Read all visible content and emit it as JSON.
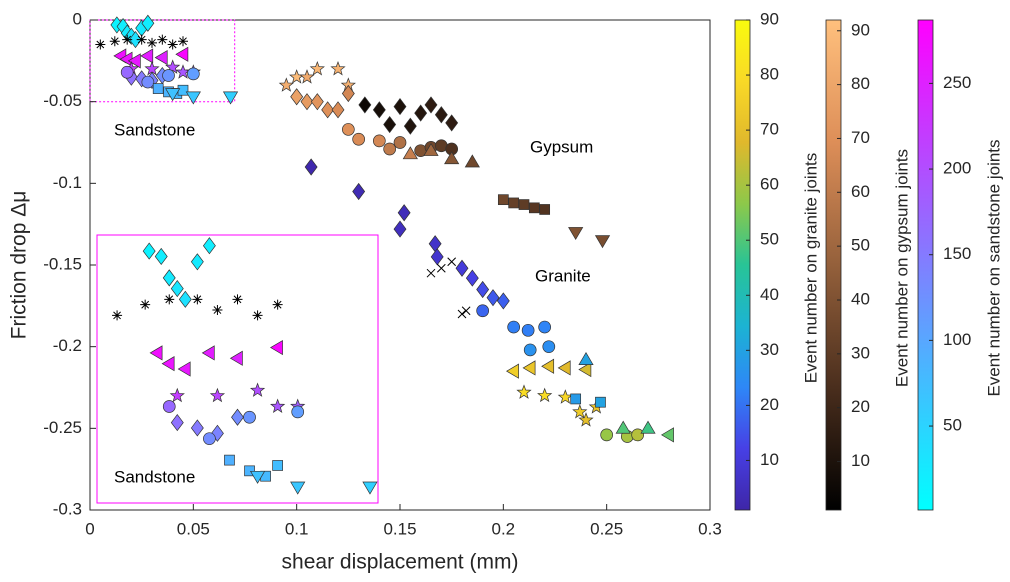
{
  "chart_data": {
    "type": "scatter",
    "xlabel": "shear displacement (mm)",
    "ylabel": "Friction drop Δμ",
    "xlim": [
      0,
      0.3
    ],
    "ylim": [
      -0.3,
      0
    ],
    "xticks": [
      0,
      0.05,
      0.1,
      0.15,
      0.2,
      0.25,
      0.3
    ],
    "yticks": [
      -0.3,
      -0.25,
      -0.2,
      -0.15,
      -0.1,
      -0.05,
      0
    ],
    "annotations": [
      "Sandstone",
      "Gypsum",
      "Granite",
      "Sandstone"
    ],
    "colorbars": [
      {
        "label": "Event number on granite joints",
        "lim": [
          1,
          90
        ],
        "ticks": [
          10,
          20,
          30,
          40,
          50,
          60,
          70,
          80,
          90
        ],
        "colormap": [
          "#3e26a8",
          "#4740e5",
          "#2e87f7",
          "#1cb3d3",
          "#28c496",
          "#8dc84a",
          "#e0b82c",
          "#f9d927",
          "#f9fb0e"
        ]
      },
      {
        "label": "Event number on gypsum joints",
        "lim": [
          1,
          92
        ],
        "ticks": [
          10,
          20,
          30,
          40,
          50,
          60,
          70,
          80,
          90
        ],
        "colormap": [
          "#000000",
          "#4a2e1d",
          "#94603b",
          "#dd8e58",
          "#ffc07d"
        ]
      },
      {
        "label": "Event number on sandstone joints",
        "lim": [
          1,
          287
        ],
        "ticks": [
          50,
          100,
          150,
          200,
          250
        ],
        "colormap": [
          "#00ffff",
          "#ff00ff"
        ]
      }
    ],
    "series": [
      {
        "colorbar": 0,
        "marker": "diamond",
        "x": [
          0.107,
          0.13,
          0.152,
          0.15,
          0.167,
          0.168,
          0.18,
          0.185,
          0.19,
          0.195,
          0.2
        ],
        "values": [
          -0.09,
          -0.105,
          -0.118,
          -0.128,
          -0.137,
          -0.145,
          -0.152,
          -0.158,
          -0.165,
          -0.17,
          -0.172
        ],
        "events": [
          2,
          3,
          4,
          5,
          7,
          8,
          10,
          12,
          14,
          16,
          17
        ]
      },
      {
        "colorbar": 0,
        "marker": "circle",
        "x": [
          0.19,
          0.205,
          0.212,
          0.22,
          0.222,
          0.213,
          0.25,
          0.26,
          0.265
        ],
        "values": [
          -0.178,
          -0.188,
          -0.19,
          -0.188,
          -0.2,
          -0.202,
          -0.254,
          -0.255,
          -0.254
        ],
        "events": [
          18,
          22,
          22,
          23,
          25,
          26,
          58,
          60,
          62
        ]
      },
      {
        "colorbar": 0,
        "marker": "tri-left",
        "x": [
          0.205,
          0.213,
          0.222,
          0.23,
          0.24,
          0.28
        ],
        "values": [
          -0.215,
          -0.213,
          -0.212,
          -0.213,
          -0.214,
          -0.254
        ],
        "events": [
          75,
          72,
          70,
          68,
          66,
          52
        ]
      },
      {
        "colorbar": 0,
        "marker": "star",
        "x": [
          0.21,
          0.22,
          0.23,
          0.237,
          0.24,
          0.245
        ],
        "values": [
          -0.228,
          -0.23,
          -0.231,
          -0.24,
          -0.245,
          -0.237
        ],
        "events": [
          80,
          80,
          78,
          74,
          70,
          72
        ]
      },
      {
        "colorbar": 0,
        "marker": "tri-up",
        "x": [
          0.24,
          0.258,
          0.27
        ],
        "values": [
          -0.208,
          -0.25,
          -0.25
        ],
        "events": [
          30,
          50,
          48
        ]
      },
      {
        "colorbar": 0,
        "marker": "square",
        "x": [
          0.235,
          0.247
        ],
        "values": [
          -0.232,
          -0.234
        ],
        "events": [
          28,
          30
        ]
      },
      {
        "colorbar": 1,
        "marker": "diamond",
        "x": [
          0.133,
          0.14,
          0.15,
          0.16,
          0.165,
          0.175,
          0.145,
          0.155,
          0.17
        ],
        "values": [
          -0.052,
          -0.055,
          -0.053,
          -0.057,
          -0.052,
          -0.063,
          -0.064,
          -0.065,
          -0.058
        ],
        "events": [
          5,
          8,
          10,
          12,
          15,
          15,
          9,
          11,
          14
        ]
      },
      {
        "colorbar": 1,
        "marker": "circle",
        "x": [
          0.125,
          0.13,
          0.14,
          0.145,
          0.15,
          0.16,
          0.165,
          0.17,
          0.175
        ],
        "values": [
          -0.067,
          -0.073,
          -0.074,
          -0.079,
          -0.075,
          -0.08,
          -0.078,
          -0.077,
          -0.079
        ],
        "events": [
          70,
          68,
          66,
          60,
          55,
          40,
          35,
          30,
          25
        ]
      },
      {
        "colorbar": 1,
        "marker": "tri-up",
        "x": [
          0.155,
          0.165,
          0.175,
          0.185
        ],
        "values": [
          -0.082,
          -0.08,
          -0.085,
          -0.087
        ],
        "events": [
          62,
          50,
          42,
          35
        ]
      },
      {
        "colorbar": 1,
        "marker": "star",
        "x": [
          0.1,
          0.11,
          0.12,
          0.125,
          0.095,
          0.105
        ],
        "values": [
          -0.035,
          -0.03,
          -0.03,
          -0.04,
          -0.04,
          -0.035
        ],
        "events": [
          90,
          88,
          86,
          85,
          84,
          82
        ]
      },
      {
        "colorbar": 1,
        "marker": "diamond",
        "x": [
          0.1,
          0.105,
          0.11,
          0.115,
          0.12,
          0.125
        ],
        "values": [
          -0.047,
          -0.05,
          -0.05,
          -0.055,
          -0.055,
          -0.045
        ],
        "events": [
          78,
          75,
          72,
          70,
          68,
          66
        ]
      },
      {
        "colorbar": 1,
        "marker": "square",
        "x": [
          0.2,
          0.205,
          0.21,
          0.215,
          0.22
        ],
        "values": [
          -0.11,
          -0.112,
          -0.113,
          -0.115,
          -0.116
        ],
        "events": [
          35,
          32,
          30,
          28,
          26
        ]
      },
      {
        "colorbar": 1,
        "marker": "tri-down",
        "x": [
          0.235,
          0.248
        ],
        "values": [
          -0.13,
          -0.135
        ],
        "events": [
          40,
          38
        ]
      },
      {
        "colorbar": 2,
        "inset": true,
        "marker": "diamond",
        "x": [
          0.013,
          0.016,
          0.018,
          0.02,
          0.022,
          0.025,
          0.028
        ],
        "values": [
          -0.003,
          -0.004,
          -0.008,
          -0.01,
          -0.012,
          -0.005,
          -0.002
        ],
        "events": [
          15,
          20,
          25,
          30,
          35,
          25,
          20
        ]
      },
      {
        "colorbar": 2,
        "inset": true,
        "marker": "tri-left",
        "x": [
          0.015,
          0.018,
          0.022,
          0.028,
          0.035,
          0.045
        ],
        "values": [
          -0.022,
          -0.024,
          -0.025,
          -0.022,
          -0.023,
          -0.021
        ],
        "events": [
          270,
          265,
          260,
          255,
          250,
          280
        ]
      },
      {
        "colorbar": 2,
        "inset": true,
        "marker": "star",
        "x": [
          0.02,
          0.03,
          0.04,
          0.045,
          0.05
        ],
        "values": [
          -0.03,
          -0.03,
          -0.029,
          -0.032,
          -0.032
        ],
        "events": [
          220,
          210,
          200,
          190,
          180
        ]
      },
      {
        "colorbar": 2,
        "inset": true,
        "marker": "diamond",
        "x": [
          0.02,
          0.025,
          0.03,
          0.035
        ],
        "values": [
          -0.035,
          -0.036,
          -0.037,
          -0.034
        ],
        "events": [
          160,
          150,
          140,
          130
        ]
      },
      {
        "colorbar": 2,
        "inset": true,
        "marker": "circle",
        "x": [
          0.018,
          0.028,
          0.038,
          0.05
        ],
        "values": [
          -0.032,
          -0.038,
          -0.034,
          -0.033
        ],
        "events": [
          170,
          130,
          120,
          110
        ]
      },
      {
        "colorbar": 2,
        "inset": true,
        "marker": "square",
        "x": [
          0.033,
          0.038,
          0.042,
          0.045
        ],
        "values": [
          -0.042,
          -0.044,
          -0.045,
          -0.043
        ],
        "events": [
          90,
          85,
          80,
          75
        ]
      },
      {
        "colorbar": 2,
        "inset": true,
        "marker": "tri-down",
        "x": [
          0.04,
          0.05,
          0.068
        ],
        "values": [
          -0.045,
          -0.047,
          -0.047
        ],
        "events": [
          70,
          65,
          55
        ]
      },
      {
        "color": "#000000",
        "inset": true,
        "marker": "asterisk",
        "x": [
          0.005,
          0.012,
          0.018,
          0.025,
          0.03,
          0.035,
          0.04,
          0.045
        ],
        "values": [
          -0.015,
          -0.013,
          -0.012,
          -0.012,
          -0.014,
          -0.012,
          -0.015,
          -0.013
        ]
      },
      {
        "color": "#000000",
        "marker": "cross",
        "x": [
          0.165,
          0.17,
          0.175,
          0.18,
          0.182
        ],
        "values": [
          -0.155,
          -0.152,
          -0.148,
          -0.18,
          -0.178
        ]
      }
    ]
  }
}
